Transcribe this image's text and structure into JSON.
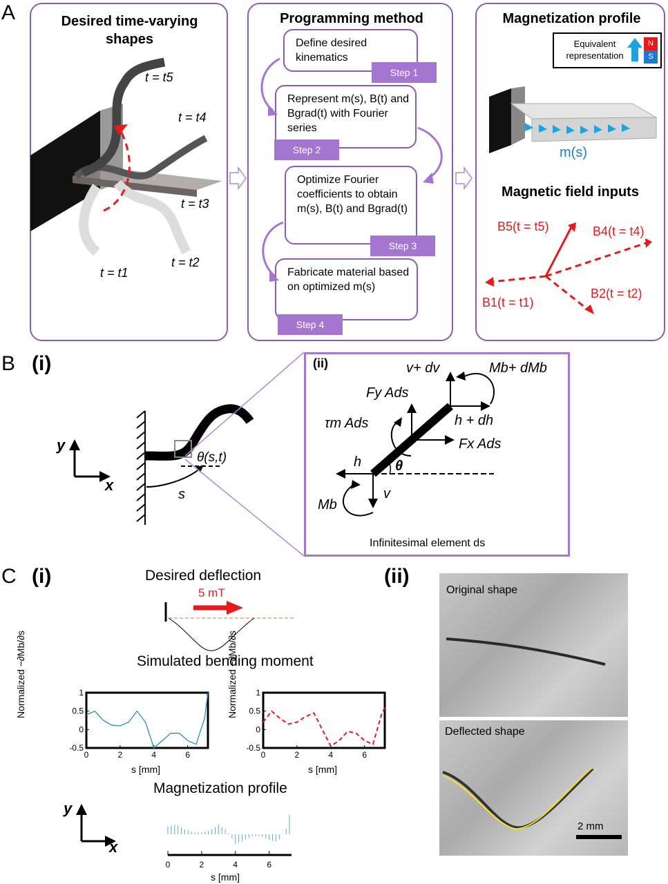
{
  "panel_labels": {
    "A": "A",
    "B": "B",
    "C": "C",
    "Bi": "(i)",
    "Bii": "(ii)",
    "Ci": "(i)",
    "Cii": "(ii)"
  },
  "panelA": {
    "left_title": "Desired time-varying shapes",
    "left_times": [
      "t = t5",
      "t = t4",
      "t = t3",
      "t = t1",
      "t = t2"
    ],
    "middle_title": "Programming method",
    "steps": [
      {
        "text": "Define desired kinematics",
        "label": "Step 1"
      },
      {
        "text": "Represent m(s), B(t) and Bgrad(t) with Fourier series",
        "label": "Step 2"
      },
      {
        "text": "Optimize Fourier coefficients to obtain m(s), B(t) and Bgrad(t)",
        "label": "Step 3"
      },
      {
        "text": "Fabricate material based on optimized m(s)",
        "label": "Step 4"
      }
    ],
    "right_title": "Magnetization profile",
    "equivalent": "Equivalent representation",
    "north": "N",
    "south": "S",
    "ms_label": "m(s)",
    "field_title": "Magnetic field inputs",
    "fields": [
      "B5(t = t5)",
      "B4(t = t4)",
      "B1(t = t1)",
      "B2(t = t2)"
    ]
  },
  "panelB": {
    "axis_y": "y",
    "axis_x": "x",
    "theta": "θ(s,t)",
    "s": "s",
    "v_dv": "v+ dv",
    "mb_dmb": "Mb+ dMb",
    "fy": "Fy Ads",
    "tau": "τm Ads",
    "h_dh": "h + dh",
    "fx": "Fx Ads",
    "h": "h",
    "theta2": "θ",
    "v": "v",
    "mb": "Mb",
    "element": "Infinitesimal element ds"
  },
  "panelC": {
    "desired": "Desired deflection",
    "field": "5 mT",
    "simulated": "Simulated bending moment",
    "ylabel": "Normalized −∂Mb/∂s",
    "xlabel": "s [mm]",
    "magprofile": "Magnetization profile",
    "axis_y": "y",
    "axis_x": "x",
    "original": "Original shape",
    "deflected": "Deflected shape",
    "scale": "2 mm"
  },
  "chart_data": [
    {
      "type": "line",
      "x": [
        0,
        0.5,
        1,
        1.5,
        2,
        2.5,
        3,
        3.5,
        4,
        4.5,
        5,
        5.5,
        6,
        6.5,
        7,
        7.2
      ],
      "series": [
        {
          "values": [
            0.4,
            0.5,
            0.25,
            0.12,
            0.1,
            0.2,
            0.5,
            0.2,
            -0.5,
            -0.3,
            -0.1,
            -0.1,
            -0.3,
            -0.4,
            0.3,
            1
          ]
        }
      ],
      "xlabel": "s [mm]",
      "ylabel": "Normalized −∂Mb/∂s",
      "xlim": [
        0,
        7.2
      ],
      "ylim": [
        -0.5,
        1
      ],
      "xticks": [
        0,
        2,
        4,
        6
      ],
      "yticks": [
        -0.5,
        0,
        0.5,
        1
      ],
      "color": "#2b8cc4"
    },
    {
      "type": "line",
      "x": [
        0,
        0.5,
        1,
        1.5,
        2,
        2.5,
        3,
        3.5,
        4,
        4.5,
        5,
        5.5,
        6,
        6.5,
        7,
        7.2
      ],
      "series": [
        {
          "values": [
            0.2,
            0.5,
            0.3,
            0.15,
            0.2,
            0.35,
            0.45,
            0.0,
            -0.45,
            -0.3,
            -0.05,
            -0.1,
            -0.3,
            -0.4,
            0.4,
            0.6
          ]
        }
      ],
      "xlabel": "s [mm]",
      "ylabel": "Normalized −∂Mb/∂s",
      "xlim": [
        0,
        7.2
      ],
      "ylim": [
        -0.5,
        1
      ],
      "xticks": [
        0,
        2,
        4,
        6
      ],
      "yticks": [
        -0.5,
        0,
        0.5,
        1
      ],
      "color": "#e41a1c"
    }
  ]
}
